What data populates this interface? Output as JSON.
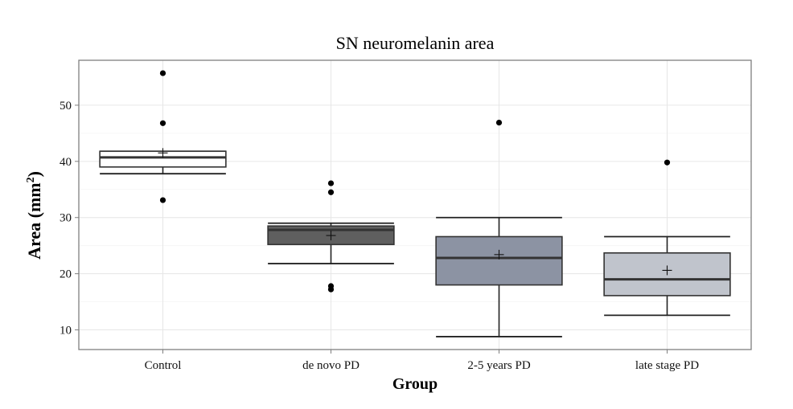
{
  "chart_data": {
    "type": "boxplot",
    "title": "SN neuromelanin area",
    "xlabel": "Group",
    "ylabel": "Area (mm",
    "ylabel_superscript": "2",
    "ylabel_suffix": ")",
    "ylim": [
      6.5,
      58
    ],
    "yticks": [
      10,
      20,
      30,
      40,
      50
    ],
    "grid": true,
    "mean_marker": "+",
    "categories": [
      "Control",
      "de novo PD",
      "2-5 years PD",
      "late stage PD"
    ],
    "series": [
      {
        "name": "Control",
        "fill": "#ffffff",
        "whisker_low": 37.8,
        "q1": 39.0,
        "median": 40.7,
        "q3": 41.8,
        "whisker_high": 41.8,
        "mean": 41.5,
        "outliers": [
          55.7,
          46.8,
          33.1
        ]
      },
      {
        "name": "de novo PD",
        "fill": "#5f5f5f",
        "whisker_low": 21.8,
        "q1": 25.2,
        "median": 27.8,
        "q3": 28.5,
        "whisker_high": 29.0,
        "mean": 26.8,
        "outliers": [
          36.1,
          34.5,
          17.8,
          17.2
        ]
      },
      {
        "name": "2-5 years PD",
        "fill": "#8c93a3",
        "whisker_low": 8.8,
        "q1": 18.0,
        "median": 22.8,
        "q3": 26.6,
        "whisker_high": 30.0,
        "mean": 23.4,
        "outliers": [
          46.9
        ]
      },
      {
        "name": "late stage PD",
        "fill": "#c0c4cc",
        "whisker_low": 12.6,
        "q1": 16.1,
        "median": 19.0,
        "q3": 23.7,
        "whisker_high": 26.6,
        "mean": 20.6,
        "outliers": [
          39.8
        ]
      }
    ]
  }
}
